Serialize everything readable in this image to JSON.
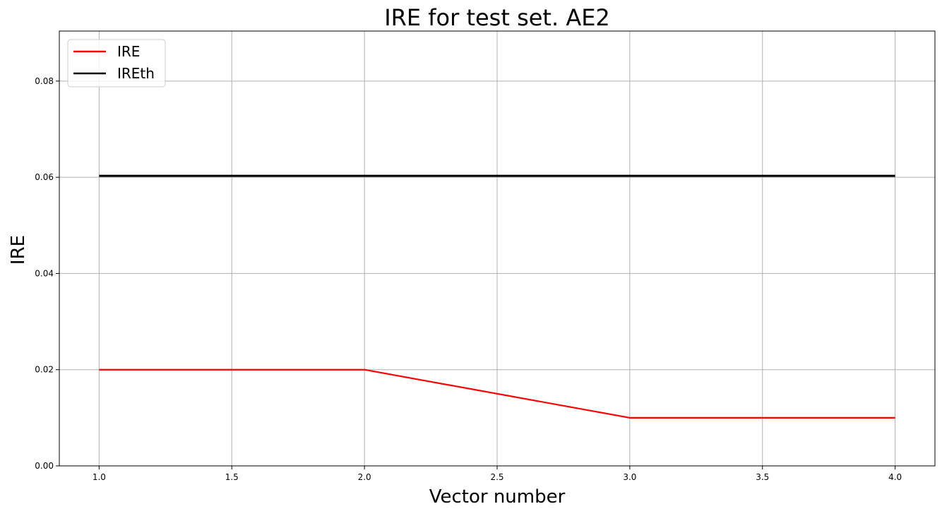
{
  "chart_data": {
    "type": "line",
    "title": "IRE for test set. AE2",
    "xlabel": "Vector number",
    "ylabel": "IRE",
    "xlim": [
      0.85,
      4.15
    ],
    "ylim": [
      0,
      0.0904
    ],
    "xticks": [
      1.0,
      1.5,
      2.0,
      2.5,
      3.0,
      3.5,
      4.0
    ],
    "xtick_labels": [
      "1.0",
      "1.5",
      "2.0",
      "2.5",
      "3.0",
      "3.5",
      "4.0"
    ],
    "yticks": [
      0,
      0.02,
      0.04,
      0.06,
      0.08
    ],
    "ytick_labels": [
      "0.00",
      "0.02",
      "0.04",
      "0.06",
      "0.08"
    ],
    "grid": true,
    "legend_placement": "top-left",
    "series": [
      {
        "name": "IRE",
        "color": "#ff0000",
        "x": [
          1,
          2,
          3,
          4
        ],
        "y": [
          0.02,
          0.02,
          0.01,
          0.01
        ]
      },
      {
        "name": "IREth",
        "color": "#000000",
        "x": [
          1,
          2,
          3,
          4
        ],
        "y": [
          0.0603,
          0.0603,
          0.0603,
          0.0603
        ]
      }
    ]
  }
}
